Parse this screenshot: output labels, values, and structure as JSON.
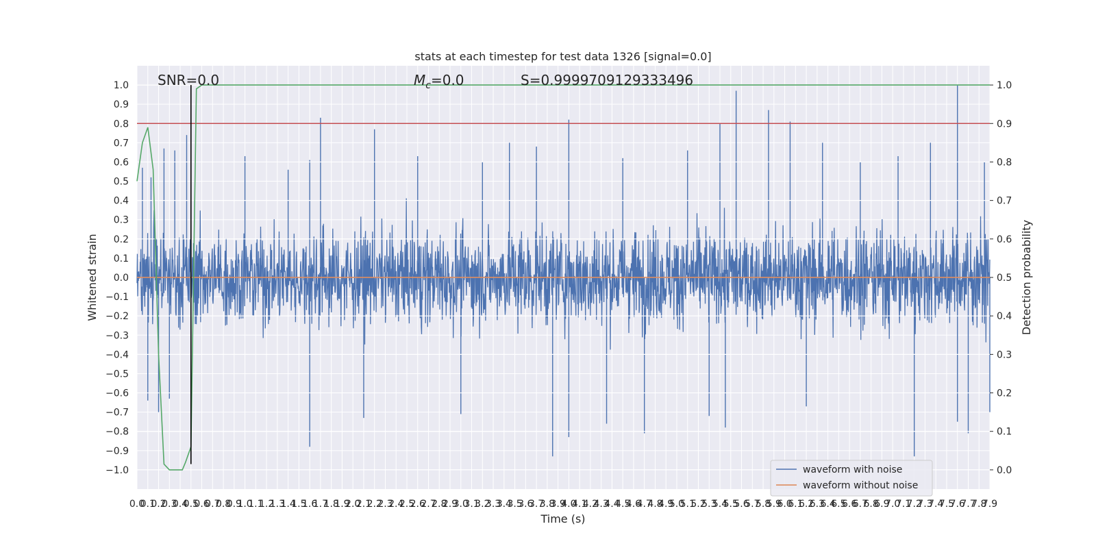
{
  "chart_data": {
    "type": "line",
    "title": "stats at each timestep for test data 1326 [signal=0.0]",
    "xlabel": "Time (s)",
    "ylabel": "Whitened strain",
    "y2label": "Detection probability",
    "xlim": [
      0.0,
      7.9
    ],
    "ylim": [
      -1.1,
      1.1
    ],
    "y2lim": [
      -0.05,
      1.05
    ],
    "x_tick_labels": [
      "0.0",
      "0.1",
      "0.2",
      "0.3",
      "0.4",
      "0.5",
      "0.6",
      "0.7",
      "0.8",
      "0.9",
      "1.0",
      "1.1",
      "1.2",
      "1.3",
      "1.4",
      "1.5",
      "1.6",
      "1.7",
      "1.8",
      "1.9",
      "2.0",
      "2.1",
      "2.2",
      "2.3",
      "2.4",
      "2.5",
      "2.6",
      "2.7",
      "2.8",
      "2.9",
      "3.0",
      "3.1",
      "3.2",
      "3.3",
      "3.4",
      "3.5",
      "3.6",
      "3.7",
      "3.8",
      "3.9",
      "4.0",
      "4.1",
      "4.2",
      "4.3",
      "4.4",
      "4.5",
      "4.6",
      "4.7",
      "4.8",
      "4.9",
      "5.0",
      "5.1",
      "5.2",
      "5.3",
      "5.4",
      "5.5",
      "5.6",
      "5.7",
      "5.8",
      "5.9",
      "6.0",
      "6.1",
      "6.2",
      "6.3",
      "6.4",
      "6.5",
      "6.6",
      "6.7",
      "6.8",
      "6.9",
      "7.0",
      "7.1",
      "7.2",
      "7.3",
      "7.4",
      "7.5",
      "7.6",
      "7.7",
      "7.8",
      "7.9"
    ],
    "y_tick_labels": [
      "1.0",
      "0.9",
      "0.8",
      "0.7",
      "0.6",
      "0.5",
      "0.4",
      "0.3",
      "0.2",
      "0.1",
      "0.0",
      "−0.1",
      "−0.2",
      "−0.3",
      "−0.4",
      "−0.5",
      "−0.6",
      "−0.7",
      "−0.8",
      "−0.9",
      "−1.0"
    ],
    "y2_tick_labels": [
      "1.0",
      "0.9",
      "0.8",
      "0.7",
      "0.6",
      "0.5",
      "0.4",
      "0.3",
      "0.2",
      "0.1",
      "0.0"
    ],
    "annotations": {
      "snr": "SNR=0.0",
      "mc_symbol": "M",
      "mc_sub": "c",
      "mc_value": "=0.0",
      "s": "S=0.9999709129333496"
    },
    "legend": {
      "placement": "lower-right",
      "entries": [
        "waveform with noise",
        "waveform without noise"
      ]
    },
    "colors": {
      "noise": "#4c72b0",
      "clean": "#dd8452",
      "probability": "#55a868",
      "threshold": "#c44e52",
      "marker": "#000000",
      "background": "#eaeaf2",
      "grid": "#ffffff"
    },
    "series": [
      {
        "name": "waveform with noise",
        "axis": "left",
        "description": "dense noise, approx. range -0.93 to 1.0",
        "spikes_up": [
          [
            0.05,
            0.57
          ],
          [
            0.13,
            0.52
          ],
          [
            0.25,
            0.67
          ],
          [
            0.35,
            0.66
          ],
          [
            0.46,
            0.74
          ],
          [
            0.5,
            0.6
          ],
          [
            1.0,
            0.63
          ],
          [
            1.4,
            0.56
          ],
          [
            1.6,
            0.61
          ],
          [
            1.7,
            0.83
          ],
          [
            2.2,
            0.77
          ],
          [
            2.6,
            0.63
          ],
          [
            3.2,
            0.6
          ],
          [
            3.45,
            0.7
          ],
          [
            3.7,
            0.68
          ],
          [
            4.0,
            0.82
          ],
          [
            4.5,
            0.62
          ],
          [
            5.1,
            0.66
          ],
          [
            5.4,
            0.8
          ],
          [
            5.55,
            0.97
          ],
          [
            5.85,
            0.87
          ],
          [
            6.05,
            0.81
          ],
          [
            6.35,
            0.7
          ],
          [
            6.7,
            0.6
          ],
          [
            7.05,
            0.63
          ],
          [
            7.35,
            0.7
          ],
          [
            7.6,
            1.0
          ],
          [
            7.85,
            0.6
          ]
        ],
        "spikes_down": [
          [
            0.1,
            -0.64
          ],
          [
            0.2,
            -0.7
          ],
          [
            0.3,
            -0.63
          ],
          [
            1.6,
            -0.88
          ],
          [
            2.1,
            -0.73
          ],
          [
            3.0,
            -0.71
          ],
          [
            3.85,
            -0.93
          ],
          [
            4.0,
            -0.83
          ],
          [
            4.35,
            -0.76
          ],
          [
            4.7,
            -0.81
          ],
          [
            5.3,
            -0.72
          ],
          [
            5.45,
            -0.78
          ],
          [
            6.2,
            -0.67
          ],
          [
            7.2,
            -0.93
          ],
          [
            7.6,
            -0.75
          ],
          [
            7.7,
            -0.81
          ],
          [
            7.9,
            -0.7
          ]
        ]
      },
      {
        "name": "waveform without noise",
        "axis": "left",
        "y": 0.0
      },
      {
        "name": "detection probability",
        "axis": "right",
        "x": [
          0.0,
          0.05,
          0.1,
          0.15,
          0.2,
          0.25,
          0.3,
          0.35,
          0.42,
          0.45,
          0.5,
          0.55,
          0.6,
          0.7,
          7.9
        ],
        "y": [
          0.75,
          0.85,
          0.89,
          0.78,
          0.3,
          0.015,
          0.0,
          0.0,
          0.0,
          0.02,
          0.06,
          0.99,
          1.0,
          1.0,
          1.0
        ]
      },
      {
        "name": "threshold",
        "axis": "right",
        "y": 0.9
      }
    ],
    "marker_line": {
      "x": 0.5,
      "y_range": [
        -0.97,
        1.0
      ]
    }
  }
}
